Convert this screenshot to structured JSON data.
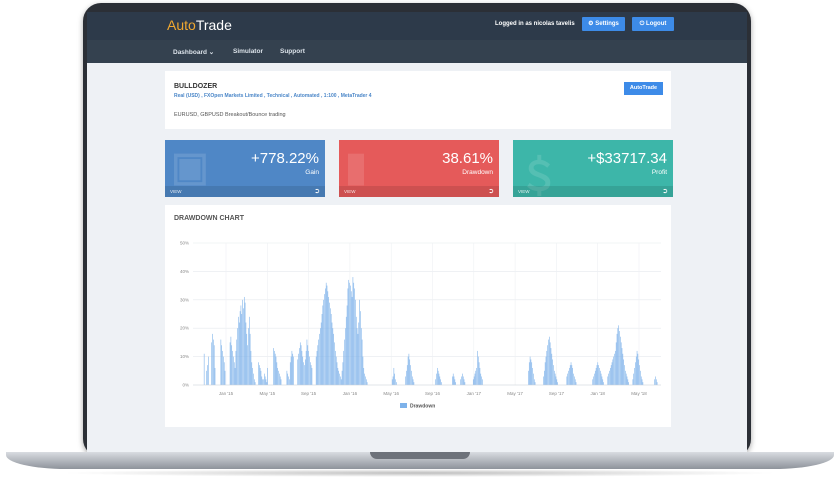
{
  "header": {
    "logo_part1": "Auto",
    "logo_part2": "Trade",
    "logged_in_text": "Logged in as nicolas tavelis",
    "settings_label": "Settings",
    "logout_label": "Logout"
  },
  "nav": {
    "items": [
      {
        "label": "Dashboard ⌄"
      },
      {
        "label": "Simulator"
      },
      {
        "label": "Support"
      }
    ]
  },
  "account": {
    "name": "BULLDOZER",
    "meta": "Real (USD) , FXOpen Markets Limited , Technical , Automated , 1:100 , MetaTrader 4",
    "description": "EURUSD, GBPUSD Breakout/Bounce trading",
    "button_label": "AutoTrade"
  },
  "stats": [
    {
      "value": "+778.22%",
      "label": "Gain",
      "link": "VIEW",
      "color": "#4f87c6"
    },
    {
      "value": "38.61%",
      "label": "Drawdown",
      "link": "VIEW",
      "color": "#e55a5a"
    },
    {
      "value": "+$33717.34",
      "label": "Profit",
      "link": "VIEW",
      "color": "#3db6a9"
    }
  ],
  "chart_data": {
    "type": "bar",
    "title": "DRAWDOWN CHART",
    "ylim": [
      0,
      50
    ],
    "y_ticks": [
      "0%",
      "10%",
      "20%",
      "30%",
      "40%",
      "50%"
    ],
    "x_ticks": [
      "Jan '15",
      "May '15",
      "Sep '15",
      "Jan '16",
      "May '16",
      "Sep '16",
      "Jan '17",
      "May '17",
      "Sep '17",
      "Jan '18",
      "May '18"
    ],
    "grid": true,
    "legend_position": "bottom",
    "series": [
      {
        "name": "Drawdown",
        "color": "#7eb2ea",
        "values": [
          0,
          0,
          0,
          0,
          0,
          0,
          0,
          0,
          0,
          0,
          0,
          0,
          0,
          11,
          0,
          0,
          5,
          7,
          10,
          0,
          0,
          0,
          15,
          18,
          16,
          14,
          6,
          0,
          0,
          0,
          0,
          0,
          0,
          16,
          14,
          12,
          10,
          8,
          5,
          0,
          0,
          0,
          0,
          0,
          15,
          17,
          14,
          12,
          10,
          8,
          6,
          12,
          16,
          20,
          24,
          22,
          26,
          28,
          25,
          30,
          27,
          31,
          29,
          22,
          18,
          14,
          20,
          24,
          18,
          12,
          8,
          6,
          4,
          2,
          1,
          0,
          0,
          0,
          8,
          7,
          6,
          5,
          3,
          2,
          2,
          4,
          3,
          2,
          1,
          6,
          0,
          0,
          0,
          0,
          0,
          0,
          13,
          12,
          11,
          10,
          8,
          6,
          5,
          4,
          3,
          2,
          0,
          0,
          0,
          0,
          0,
          0,
          5,
          4,
          3,
          2,
          8,
          10,
          12,
          11,
          10,
          0,
          0,
          0,
          0,
          9,
          11,
          13,
          15,
          14,
          12,
          10,
          8,
          7,
          9,
          12,
          16,
          14,
          12,
          10,
          8,
          7,
          6,
          0,
          0,
          0,
          0,
          10,
          12,
          14,
          16,
          18,
          20,
          22,
          25,
          28,
          30,
          32,
          34,
          36,
          35,
          33,
          31,
          29,
          27,
          25,
          22,
          20,
          18,
          15,
          12,
          10,
          8,
          6,
          5,
          4,
          3,
          2,
          5,
          8,
          12,
          16,
          20,
          24,
          28,
          34,
          37,
          36,
          35,
          33,
          31,
          38,
          36,
          34,
          30,
          24,
          20,
          18,
          22,
          30,
          26,
          20,
          16,
          10,
          6,
          4,
          3,
          2,
          1,
          0,
          0,
          0,
          0,
          0,
          0,
          0,
          0,
          0,
          0,
          0,
          0,
          0,
          0,
          0,
          0,
          0,
          0,
          0,
          0,
          0,
          0,
          0,
          0,
          0,
          0,
          0,
          0,
          0,
          2,
          3,
          6,
          4,
          2,
          1,
          0,
          0,
          0,
          0,
          0,
          0,
          0,
          0,
          0,
          0,
          3,
          5,
          7,
          10,
          11,
          9,
          7,
          5,
          3,
          2,
          1,
          0,
          0,
          0,
          0,
          0,
          0,
          0,
          0,
          0,
          0,
          0,
          0,
          0,
          0,
          0,
          0,
          0,
          0,
          0,
          0,
          0,
          0,
          0,
          0,
          0,
          2,
          4,
          6,
          5,
          4,
          3,
          2,
          1,
          0,
          0,
          0,
          0,
          0,
          0,
          0,
          0,
          0,
          0,
          0,
          0,
          3,
          4,
          3,
          2,
          1,
          0,
          0,
          0,
          0,
          0,
          2,
          3,
          4,
          3,
          2,
          1,
          0,
          0,
          0,
          0,
          0,
          0,
          0,
          0,
          0,
          2,
          3,
          4,
          5,
          6,
          12,
          10,
          8,
          6,
          4,
          3,
          2,
          0,
          0,
          0,
          0,
          0,
          0,
          0,
          0,
          0,
          0,
          0,
          0,
          0,
          0,
          0,
          0,
          0,
          0,
          0,
          0,
          0,
          0,
          0,
          0,
          0,
          0,
          0,
          0,
          0,
          0,
          0,
          0,
          0,
          0,
          0,
          0,
          0,
          0,
          0,
          0,
          0,
          0,
          0,
          0,
          0,
          0,
          0,
          0,
          0,
          0,
          0,
          0,
          0,
          0,
          5,
          8,
          10,
          9,
          8,
          6,
          4,
          2,
          1,
          0,
          0,
          0,
          0,
          0,
          0,
          0,
          0,
          0,
          3,
          5,
          8,
          10,
          12,
          14,
          16,
          17,
          15,
          13,
          11,
          9,
          7,
          5,
          4,
          3,
          2,
          1,
          0,
          0,
          0,
          0,
          0,
          0,
          0,
          0,
          0,
          0,
          3,
          4,
          5,
          6,
          7,
          8,
          7,
          6,
          4,
          3,
          2,
          1,
          0,
          0,
          0,
          0,
          0,
          0,
          0,
          0,
          0,
          0,
          0,
          0,
          0,
          0,
          0,
          0,
          0,
          0,
          0,
          2,
          3,
          4,
          5,
          6,
          7,
          8,
          7,
          6,
          5,
          4,
          3,
          2,
          1,
          0,
          0,
          0,
          0,
          3,
          4,
          5,
          6,
          7,
          8,
          9,
          10,
          11,
          12,
          15,
          18,
          20,
          21,
          19,
          17,
          15,
          13,
          11,
          9,
          7,
          5,
          4,
          3,
          2,
          1,
          0,
          0,
          0,
          0,
          2,
          4,
          6,
          8,
          10,
          12,
          11,
          9,
          7,
          5,
          3,
          2,
          1,
          0,
          0,
          0,
          0,
          0,
          0,
          0,
          0,
          0,
          0,
          0,
          0,
          0,
          2,
          3,
          2,
          1,
          0,
          0,
          0,
          0
        ]
      }
    ]
  }
}
